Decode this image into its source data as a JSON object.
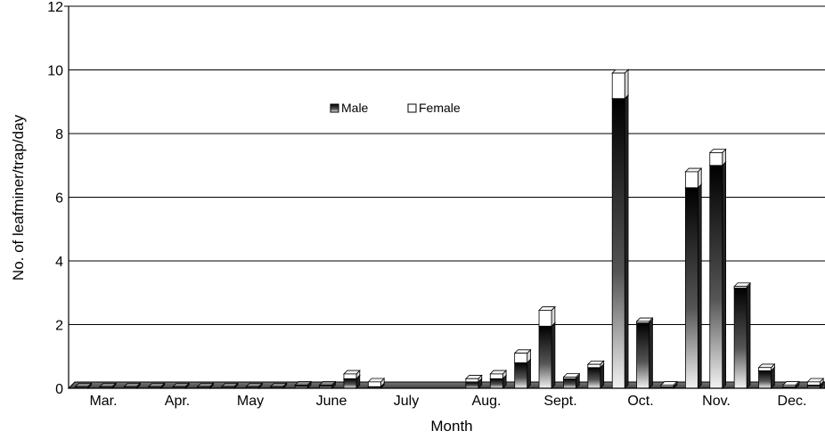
{
  "chart_data": {
    "type": "bar",
    "stacked": true,
    "xlabel": "Month",
    "ylabel": "No. of leafminer/trap/day",
    "ylim": [
      0,
      12
    ],
    "yticks": [
      0,
      2,
      4,
      6,
      8,
      10,
      12
    ],
    "grid": "horizontal",
    "legend_position": "upper-center",
    "months": [
      "Mar.",
      "Apr.",
      "May",
      "June",
      "July",
      "Aug.",
      "Sept.",
      "Oct.",
      "Nov.",
      "Dec."
    ],
    "series": [
      {
        "name": "Male",
        "color": "#333333",
        "values": [
          0.05,
          0.05,
          0.05,
          0.05,
          0.05,
          0.05,
          0.05,
          0.05,
          0.05,
          0.1,
          0.1,
          0.3,
          0.05,
          0,
          0,
          0,
          0.2,
          0.3,
          0.8,
          1.95,
          0.3,
          0.65,
          9.1,
          2.05,
          0.05,
          6.3,
          7.0,
          3.15,
          0.55,
          0.05,
          0.1
        ]
      },
      {
        "name": "Female",
        "color": "#ffffff",
        "values": [
          0,
          0,
          0,
          0,
          0,
          0,
          0,
          0,
          0,
          0,
          0,
          0.15,
          0.15,
          0,
          0,
          0,
          0.1,
          0.15,
          0.3,
          0.5,
          0.05,
          0.1,
          0.8,
          0.05,
          0.05,
          0.5,
          0.4,
          0.05,
          0.1,
          0.05,
          0.1
        ]
      }
    ]
  }
}
